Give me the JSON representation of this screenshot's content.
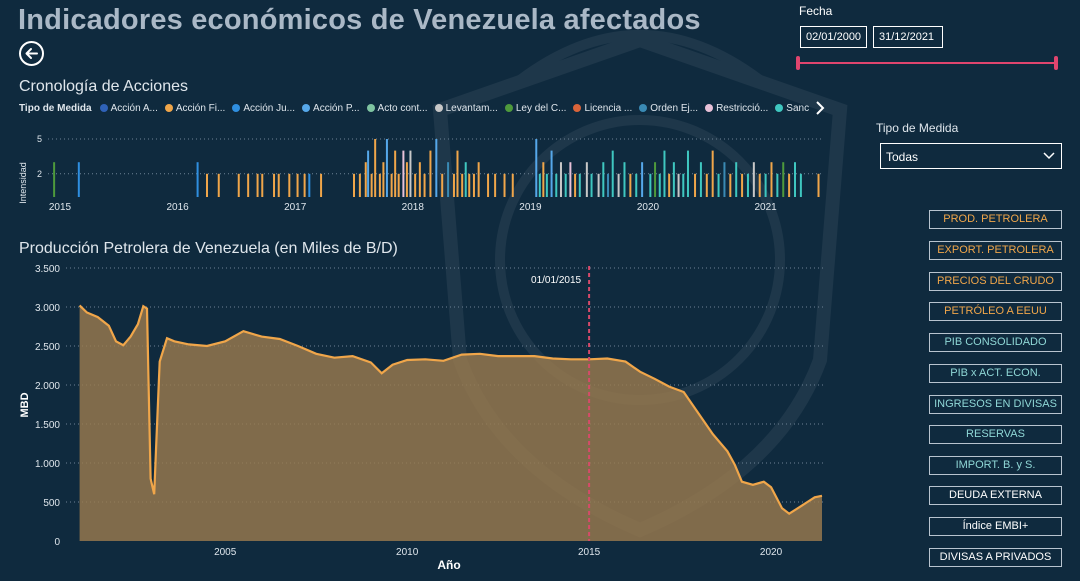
{
  "header": {
    "title": "Indicadores económicos de Venezuela afectados"
  },
  "back_icon": "arrow-left-icon",
  "timeline": {
    "title": "Cronología de Acciones",
    "legend_title": "Tipo de Medida",
    "legend_items": [
      {
        "label": "Acción A...",
        "color": "#2f62b8"
      },
      {
        "label": "Acción Fi...",
        "color": "#f0a64a"
      },
      {
        "label": "Acción Ju...",
        "color": "#2f8fe0"
      },
      {
        "label": "Acción P...",
        "color": "#56a8ea"
      },
      {
        "label": "Acto cont...",
        "color": "#7fc4a1"
      },
      {
        "label": "Levantam...",
        "color": "#c8c8c8"
      },
      {
        "label": "Ley del C...",
        "color": "#4e9a3c"
      },
      {
        "label": "Licencia ...",
        "color": "#d9643a"
      },
      {
        "label": "Orden Ej...",
        "color": "#3a8ab4"
      },
      {
        "label": "Restricció...",
        "color": "#e8c1d8"
      },
      {
        "label": "Sanción a...",
        "color": "#3fc7c0"
      }
    ],
    "legend_next_icon": "caret-right-icon"
  },
  "fecha": {
    "label": "Fecha",
    "start": "02/01/2000",
    "end": "31/12/2021"
  },
  "tipo_medida": {
    "label": "Tipo de Medida",
    "selected": "Todas"
  },
  "nav_buttons": [
    {
      "label": "PROD. PETROLERA",
      "style": "orange"
    },
    {
      "label": "EXPORT. PETROLERA",
      "style": "orange"
    },
    {
      "label": "PRECIOS DEL CRUDO",
      "style": "orange"
    },
    {
      "label": "PETRÓLEO A EEUU",
      "style": "orange"
    },
    {
      "label": "PIB CONSOLIDADO",
      "style": "teal"
    },
    {
      "label": "PIB x ACT. ECON.",
      "style": "teal"
    },
    {
      "label": "INGRESOS EN DIVISAS",
      "style": "teal"
    },
    {
      "label": "RESERVAS",
      "style": "teal"
    },
    {
      "label": "IMPORT. B. y S.",
      "style": "teal"
    },
    {
      "label": "DEUDA EXTERNA",
      "style": "white"
    },
    {
      "label": "Índice EMBI+",
      "style": "white"
    },
    {
      "label": "DIVISAS A PRIVADOS",
      "style": "white"
    }
  ],
  "chart_data": [
    {
      "type": "bar",
      "title": "Cronología de Acciones",
      "ylabel": "Intensidad",
      "ylim": [
        0,
        5
      ],
      "yticks": [
        2,
        5
      ],
      "xticks": [
        "2015",
        "2016",
        "2017",
        "2018",
        "2019",
        "2020",
        "2021"
      ],
      "xlim": [
        2015,
        2021.45
      ],
      "events": [
        {
          "x": 2014.95,
          "y": 3,
          "t": 6
        },
        {
          "x": 2015.16,
          "y": 3,
          "t": 2
        },
        {
          "x": 2016.17,
          "y": 3,
          "t": 2
        },
        {
          "x": 2016.25,
          "y": 2,
          "t": 1
        },
        {
          "x": 2016.35,
          "y": 2,
          "t": 1
        },
        {
          "x": 2016.52,
          "y": 2,
          "t": 1
        },
        {
          "x": 2016.6,
          "y": 2,
          "t": 1
        },
        {
          "x": 2016.68,
          "y": 2,
          "t": 1
        },
        {
          "x": 2016.72,
          "y": 2,
          "t": 1
        },
        {
          "x": 2016.82,
          "y": 2,
          "t": 1
        },
        {
          "x": 2016.86,
          "y": 2,
          "t": 1
        },
        {
          "x": 2016.95,
          "y": 2,
          "t": 1
        },
        {
          "x": 2017.02,
          "y": 2,
          "t": 1
        },
        {
          "x": 2017.08,
          "y": 2,
          "t": 1
        },
        {
          "x": 2017.12,
          "y": 2,
          "t": 2
        },
        {
          "x": 2017.22,
          "y": 2,
          "t": 1
        },
        {
          "x": 2017.5,
          "y": 2,
          "t": 1
        },
        {
          "x": 2017.55,
          "y": 2,
          "t": 1
        },
        {
          "x": 2017.6,
          "y": 3,
          "t": 1
        },
        {
          "x": 2017.62,
          "y": 4,
          "t": 3
        },
        {
          "x": 2017.65,
          "y": 2,
          "t": 1
        },
        {
          "x": 2017.68,
          "y": 5,
          "t": 1
        },
        {
          "x": 2017.72,
          "y": 2,
          "t": 1
        },
        {
          "x": 2017.75,
          "y": 3,
          "t": 1
        },
        {
          "x": 2017.78,
          "y": 5,
          "t": 3
        },
        {
          "x": 2017.82,
          "y": 2,
          "t": 1
        },
        {
          "x": 2017.85,
          "y": 4,
          "t": 1
        },
        {
          "x": 2017.88,
          "y": 2,
          "t": 1
        },
        {
          "x": 2017.92,
          "y": 4,
          "t": 9
        },
        {
          "x": 2017.95,
          "y": 3,
          "t": 1
        },
        {
          "x": 2017.98,
          "y": 4,
          "t": 5
        },
        {
          "x": 2018.02,
          "y": 2,
          "t": 1
        },
        {
          "x": 2018.06,
          "y": 3,
          "t": 1
        },
        {
          "x": 2018.1,
          "y": 2,
          "t": 1
        },
        {
          "x": 2018.15,
          "y": 4,
          "t": 1
        },
        {
          "x": 2018.2,
          "y": 5,
          "t": 3
        },
        {
          "x": 2018.25,
          "y": 2,
          "t": 1
        },
        {
          "x": 2018.3,
          "y": 3,
          "t": 8
        },
        {
          "x": 2018.35,
          "y": 2,
          "t": 1
        },
        {
          "x": 2018.38,
          "y": 4,
          "t": 1
        },
        {
          "x": 2018.42,
          "y": 2,
          "t": 1
        },
        {
          "x": 2018.45,
          "y": 3,
          "t": 10
        },
        {
          "x": 2018.48,
          "y": 2,
          "t": 1
        },
        {
          "x": 2018.52,
          "y": 2,
          "t": 1
        },
        {
          "x": 2018.56,
          "y": 3,
          "t": 1
        },
        {
          "x": 2018.64,
          "y": 2,
          "t": 1
        },
        {
          "x": 2018.7,
          "y": 2,
          "t": 1
        },
        {
          "x": 2018.78,
          "y": 2,
          "t": 1
        },
        {
          "x": 2018.85,
          "y": 2,
          "t": 1
        },
        {
          "x": 2019.05,
          "y": 5,
          "t": 3
        },
        {
          "x": 2019.08,
          "y": 2,
          "t": 10
        },
        {
          "x": 2019.11,
          "y": 3,
          "t": 1
        },
        {
          "x": 2019.14,
          "y": 2,
          "t": 10
        },
        {
          "x": 2019.18,
          "y": 4,
          "t": 3
        },
        {
          "x": 2019.22,
          "y": 2,
          "t": 10
        },
        {
          "x": 2019.26,
          "y": 3,
          "t": 5
        },
        {
          "x": 2019.3,
          "y": 2,
          "t": 10
        },
        {
          "x": 2019.34,
          "y": 3,
          "t": 9
        },
        {
          "x": 2019.38,
          "y": 2,
          "t": 1
        },
        {
          "x": 2019.42,
          "y": 2,
          "t": 10
        },
        {
          "x": 2019.48,
          "y": 3,
          "t": 5
        },
        {
          "x": 2019.52,
          "y": 2,
          "t": 10
        },
        {
          "x": 2019.58,
          "y": 2,
          "t": 5
        },
        {
          "x": 2019.62,
          "y": 3,
          "t": 10
        },
        {
          "x": 2019.66,
          "y": 2,
          "t": 8
        },
        {
          "x": 2019.7,
          "y": 4,
          "t": 10
        },
        {
          "x": 2019.75,
          "y": 2,
          "t": 5
        },
        {
          "x": 2019.8,
          "y": 3,
          "t": 10
        },
        {
          "x": 2019.85,
          "y": 2,
          "t": 1
        },
        {
          "x": 2019.9,
          "y": 2,
          "t": 10
        },
        {
          "x": 2019.95,
          "y": 3,
          "t": 3
        },
        {
          "x": 2020.02,
          "y": 2,
          "t": 10
        },
        {
          "x": 2020.06,
          "y": 3,
          "t": 6
        },
        {
          "x": 2020.1,
          "y": 2,
          "t": 10
        },
        {
          "x": 2020.14,
          "y": 4,
          "t": 10
        },
        {
          "x": 2020.18,
          "y": 2,
          "t": 1
        },
        {
          "x": 2020.22,
          "y": 3,
          "t": 10
        },
        {
          "x": 2020.26,
          "y": 2,
          "t": 5
        },
        {
          "x": 2020.3,
          "y": 2,
          "t": 10
        },
        {
          "x": 2020.34,
          "y": 4,
          "t": 10
        },
        {
          "x": 2020.4,
          "y": 2,
          "t": 1
        },
        {
          "x": 2020.45,
          "y": 3,
          "t": 10
        },
        {
          "x": 2020.5,
          "y": 2,
          "t": 1
        },
        {
          "x": 2020.55,
          "y": 4,
          "t": 1
        },
        {
          "x": 2020.6,
          "y": 2,
          "t": 10
        },
        {
          "x": 2020.65,
          "y": 3,
          "t": 8
        },
        {
          "x": 2020.7,
          "y": 2,
          "t": 1
        },
        {
          "x": 2020.75,
          "y": 3,
          "t": 10
        },
        {
          "x": 2020.8,
          "y": 2,
          "t": 1
        },
        {
          "x": 2020.85,
          "y": 2,
          "t": 10
        },
        {
          "x": 2020.9,
          "y": 3,
          "t": 5
        },
        {
          "x": 2020.95,
          "y": 2,
          "t": 1
        },
        {
          "x": 2021.0,
          "y": 2,
          "t": 10
        },
        {
          "x": 2021.05,
          "y": 3,
          "t": 1
        },
        {
          "x": 2021.1,
          "y": 2,
          "t": 10
        },
        {
          "x": 2021.15,
          "y": 3,
          "t": 6
        },
        {
          "x": 2021.2,
          "y": 2,
          "t": 1
        },
        {
          "x": 2021.25,
          "y": 3,
          "t": 10
        },
        {
          "x": 2021.3,
          "y": 2,
          "t": 10
        },
        {
          "x": 2021.45,
          "y": 2,
          "t": 1
        }
      ]
    },
    {
      "type": "area",
      "title": "Producción Petrolera de Venezuela (en Miles de B/D)",
      "xlabel": "Año",
      "ylabel": "MBD",
      "ylim": [
        0,
        3500
      ],
      "xlim": [
        2000.9,
        2021.4
      ],
      "yticks": [
        0,
        500,
        1000,
        1500,
        2000,
        2500,
        3000,
        3500
      ],
      "ytick_labels": [
        "0",
        "500",
        "1.000",
        "1.500",
        "2.000",
        "2.500",
        "3.000",
        "3.500"
      ],
      "xticks": [
        "2005",
        "2010",
        "2015",
        "2020"
      ],
      "reference_line": {
        "x": 2015.0,
        "label": "01/01/2015"
      },
      "grid": "horizontal-dotted",
      "fill_color": "#9a7a4e",
      "line_color": "#f0a64a",
      "x": [
        2001.0,
        2001.2,
        2001.5,
        2001.8,
        2002.0,
        2002.2,
        2002.4,
        2002.5,
        2002.6,
        2002.75,
        2002.85,
        2002.95,
        2003.05,
        2003.1,
        2003.2,
        2003.4,
        2003.6,
        2004.0,
        2004.5,
        2005.0,
        2005.5,
        2006.0,
        2006.5,
        2007.0,
        2007.5,
        2008.0,
        2008.5,
        2009.0,
        2009.3,
        2009.6,
        2010.0,
        2010.5,
        2011.0,
        2011.5,
        2012.0,
        2012.5,
        2013.0,
        2013.5,
        2014.0,
        2014.5,
        2015.0,
        2015.5,
        2016.0,
        2016.4,
        2016.8,
        2017.2,
        2017.6,
        2018.0,
        2018.4,
        2018.8,
        2019.0,
        2019.2,
        2019.5,
        2019.8,
        2020.0,
        2020.3,
        2020.5,
        2020.8,
        2021.0,
        2021.2,
        2021.4
      ],
      "y": [
        3020,
        2930,
        2870,
        2760,
        2560,
        2510,
        2620,
        2700,
        2780,
        3010,
        2980,
        800,
        600,
        1200,
        2300,
        2600,
        2560,
        2520,
        2500,
        2560,
        2690,
        2620,
        2590,
        2500,
        2400,
        2350,
        2370,
        2290,
        2150,
        2260,
        2320,
        2330,
        2310,
        2390,
        2400,
        2370,
        2370,
        2370,
        2340,
        2330,
        2330,
        2340,
        2300,
        2170,
        2080,
        1980,
        1910,
        1640,
        1370,
        1150,
        980,
        760,
        720,
        760,
        690,
        420,
        350,
        440,
        500,
        560,
        580
      ]
    }
  ]
}
